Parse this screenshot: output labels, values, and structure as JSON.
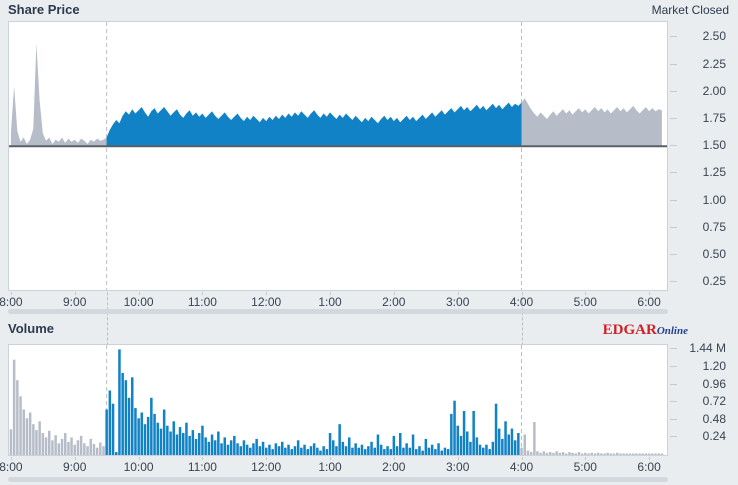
{
  "page": {
    "background": "#e9edf0"
  },
  "price_panel": {
    "title": "Share Price",
    "status": "Market Closed"
  },
  "volume_panel": {
    "title": "Volume",
    "brand": {
      "edgar": "EDGAR",
      "online": "Online"
    }
  },
  "colors": {
    "market_hours": "#1182c5",
    "extended_hours": "#b6bdc8",
    "previous_close_line": "#586067",
    "dashed_marker": "#b8bec6",
    "plot_border": "#ccd2d9",
    "axis_text": "#3a4350"
  },
  "chart_data": [
    {
      "type": "area",
      "title": "Share Price",
      "xlim": [
        7.97,
        18.28
      ],
      "ylim": [
        0.18,
        2.64
      ],
      "baseline": 1.5,
      "markers": [
        {
          "t": 9.5,
          "name": "market-open"
        },
        {
          "t": 16,
          "name": "market-close"
        }
      ],
      "x_ticks": [
        {
          "t": 8,
          "label": "8:00"
        },
        {
          "t": 9,
          "label": "9:00"
        },
        {
          "t": 10,
          "label": "10:00"
        },
        {
          "t": 11,
          "label": "11:00"
        },
        {
          "t": 12,
          "label": "12:00"
        },
        {
          "t": 13,
          "label": "1:00"
        },
        {
          "t": 14,
          "label": "2:00"
        },
        {
          "t": 15,
          "label": "3:00"
        },
        {
          "t": 16,
          "label": "4:00"
        },
        {
          "t": 17,
          "label": "5:00"
        },
        {
          "t": 18,
          "label": "6:00"
        }
      ],
      "y_ticks": [
        {
          "v": 2.5,
          "label": "2.50"
        },
        {
          "v": 2.25,
          "label": "2.25"
        },
        {
          "v": 2.0,
          "label": "2.00"
        },
        {
          "v": 1.75,
          "label": "1.75"
        },
        {
          "v": 1.5,
          "label": "1.50"
        },
        {
          "v": 1.25,
          "label": "1.25"
        },
        {
          "v": 1.0,
          "label": "1.00"
        },
        {
          "v": 0.75,
          "label": "0.75"
        },
        {
          "v": 0.5,
          "label": "0.50"
        },
        {
          "v": 0.25,
          "label": "0.25"
        }
      ],
      "series": [
        {
          "name": "pre-market",
          "color": "#b6bdc8",
          "t0": 8.0,
          "dt": 0.05,
          "values": [
            1.62,
            2.05,
            1.64,
            1.54,
            1.58,
            1.52,
            1.56,
            1.66,
            2.44,
            1.92,
            1.62,
            1.55,
            1.58,
            1.52,
            1.56,
            1.54,
            1.58,
            1.53,
            1.57,
            1.54,
            1.56,
            1.53,
            1.57,
            1.55,
            1.52,
            1.56,
            1.54,
            1.57,
            1.55,
            1.56,
            1.58
          ]
        },
        {
          "name": "market-hours",
          "color": "#1182c5",
          "t0": 9.5,
          "dt": 0.05,
          "values": [
            1.58,
            1.65,
            1.7,
            1.74,
            1.71,
            1.78,
            1.82,
            1.79,
            1.84,
            1.8,
            1.83,
            1.86,
            1.81,
            1.77,
            1.82,
            1.85,
            1.8,
            1.83,
            1.86,
            1.82,
            1.78,
            1.81,
            1.84,
            1.79,
            1.76,
            1.8,
            1.83,
            1.78,
            1.81,
            1.77,
            1.8,
            1.76,
            1.79,
            1.82,
            1.78,
            1.75,
            1.78,
            1.81,
            1.77,
            1.74,
            1.77,
            1.8,
            1.76,
            1.73,
            1.77,
            1.74,
            1.78,
            1.75,
            1.72,
            1.76,
            1.73,
            1.77,
            1.74,
            1.78,
            1.75,
            1.79,
            1.76,
            1.8,
            1.77,
            1.81,
            1.78,
            1.82,
            1.79,
            1.76,
            1.8,
            1.83,
            1.79,
            1.76,
            1.8,
            1.77,
            1.81,
            1.78,
            1.75,
            1.79,
            1.76,
            1.8,
            1.77,
            1.74,
            1.78,
            1.75,
            1.72,
            1.76,
            1.73,
            1.77,
            1.74,
            1.71,
            1.75,
            1.78,
            1.74,
            1.77,
            1.73,
            1.76,
            1.72,
            1.75,
            1.78,
            1.74,
            1.77,
            1.73,
            1.76,
            1.79,
            1.75,
            1.78,
            1.81,
            1.77,
            1.8,
            1.83,
            1.79,
            1.82,
            1.85,
            1.81,
            1.84,
            1.87,
            1.83,
            1.86,
            1.82,
            1.85,
            1.88,
            1.84,
            1.87,
            1.83,
            1.86,
            1.89,
            1.85,
            1.88,
            1.84,
            1.87,
            1.9,
            1.86,
            1.89,
            1.87,
            1.9
          ]
        },
        {
          "name": "after-hours",
          "color": "#b6bdc8",
          "t0": 16.0,
          "dt": 0.05,
          "values": [
            1.9,
            1.94,
            1.89,
            1.84,
            1.8,
            1.77,
            1.81,
            1.78,
            1.75,
            1.79,
            1.82,
            1.78,
            1.81,
            1.84,
            1.8,
            1.83,
            1.79,
            1.82,
            1.85,
            1.81,
            1.84,
            1.8,
            1.83,
            1.86,
            1.82,
            1.85,
            1.81,
            1.84,
            1.8,
            1.83,
            1.86,
            1.82,
            1.85,
            1.81,
            1.84,
            1.87,
            1.83,
            1.8,
            1.83,
            1.86,
            1.82,
            1.85,
            1.82,
            1.84,
            1.83
          ]
        }
      ]
    },
    {
      "type": "bar",
      "title": "Volume",
      "xlim": [
        7.97,
        18.28
      ],
      "ylim": [
        0,
        1.5
      ],
      "markers": [
        {
          "t": 9.5,
          "name": "market-open"
        },
        {
          "t": 16,
          "name": "market-close"
        }
      ],
      "x_ticks": [
        {
          "t": 8,
          "label": "8:00"
        },
        {
          "t": 9,
          "label": "9:00"
        },
        {
          "t": 10,
          "label": "10:00"
        },
        {
          "t": 11,
          "label": "11:00"
        },
        {
          "t": 12,
          "label": "12:00"
        },
        {
          "t": 13,
          "label": "1:00"
        },
        {
          "t": 14,
          "label": "2:00"
        },
        {
          "t": 15,
          "label": "3:00"
        },
        {
          "t": 16,
          "label": "4:00"
        },
        {
          "t": 17,
          "label": "5:00"
        },
        {
          "t": 18,
          "label": "6:00"
        }
      ],
      "y_ticks": [
        {
          "v": 1.44,
          "label": "1.44 M"
        },
        {
          "v": 1.2,
          "label": "1.20"
        },
        {
          "v": 0.96,
          "label": "0.96"
        },
        {
          "v": 0.72,
          "label": "0.72"
        },
        {
          "v": 0.48,
          "label": "0.48"
        },
        {
          "v": 0.24,
          "label": "0.24"
        }
      ],
      "series": [
        {
          "name": "pre-market",
          "color": "#b6bdc8",
          "t0": 8.0,
          "dt": 0.05,
          "values": [
            0.35,
            1.3,
            1.02,
            0.8,
            0.62,
            0.5,
            0.58,
            0.42,
            0.34,
            0.46,
            0.3,
            0.24,
            0.33,
            0.2,
            0.27,
            0.16,
            0.22,
            0.3,
            0.18,
            0.24,
            0.14,
            0.2,
            0.26,
            0.16,
            0.12,
            0.22,
            0.15,
            0.1,
            0.17,
            0.12
          ]
        },
        {
          "name": "market-hours",
          "color": "#1182c5",
          "t0": 9.5,
          "dt": 0.05,
          "values": [
            0.62,
            0.88,
            0.7,
            0.04,
            1.44,
            1.12,
            1.02,
            0.78,
            1.06,
            0.64,
            0.5,
            0.58,
            0.42,
            0.52,
            0.78,
            0.56,
            0.44,
            0.36,
            0.62,
            0.4,
            0.32,
            0.46,
            0.28,
            0.38,
            0.3,
            0.44,
            0.26,
            0.34,
            0.22,
            0.3,
            0.4,
            0.24,
            0.18,
            0.28,
            0.2,
            0.32,
            0.16,
            0.24,
            0.14,
            0.2,
            0.26,
            0.16,
            0.12,
            0.2,
            0.14,
            0.1,
            0.16,
            0.22,
            0.12,
            0.18,
            0.1,
            0.14,
            0.08,
            0.16,
            0.12,
            0.18,
            0.1,
            0.14,
            0.08,
            0.12,
            0.2,
            0.1,
            0.14,
            0.08,
            0.12,
            0.16,
            0.1,
            0.06,
            0.12,
            0.08,
            0.3,
            0.2,
            0.12,
            0.42,
            0.18,
            0.12,
            0.24,
            0.1,
            0.16,
            0.1,
            0.14,
            0.08,
            0.12,
            0.18,
            0.1,
            0.28,
            0.14,
            0.08,
            0.12,
            0.08,
            0.26,
            0.12,
            0.3,
            0.1,
            0.16,
            0.1,
            0.28,
            0.08,
            0.12,
            0.06,
            0.22,
            0.1,
            0.14,
            0.08,
            0.16,
            0.06,
            0.1,
            0.08,
            0.56,
            0.74,
            0.4,
            0.26,
            0.6,
            0.32,
            0.18,
            0.6,
            0.24,
            0.14,
            0.1,
            0.14,
            0.08,
            0.18,
            0.7,
            0.36,
            0.22,
            0.46,
            0.28,
            0.36,
            0.2,
            0.3
          ]
        },
        {
          "name": "after-hours",
          "color": "#b6bdc8",
          "t0": 16.0,
          "dt": 0.05,
          "values": [
            0.1,
            0.28,
            0.06,
            0.04,
            0.45,
            0.05,
            0.03,
            0.05,
            0.03,
            0.04,
            0.03,
            0.05,
            0.03,
            0.04,
            0.02,
            0.04,
            0.03,
            0.02,
            0.04,
            0.02,
            0.03,
            0.02,
            0.03,
            0.02,
            0.03,
            0.02,
            0.02,
            0.03,
            0.02,
            0.02,
            0.03,
            0.02,
            0.02,
            0.02,
            0.02,
            0.02,
            0.02,
            0.02,
            0.02,
            0.02,
            0.02,
            0.02,
            0.02,
            0.02,
            0.02
          ]
        }
      ]
    }
  ]
}
